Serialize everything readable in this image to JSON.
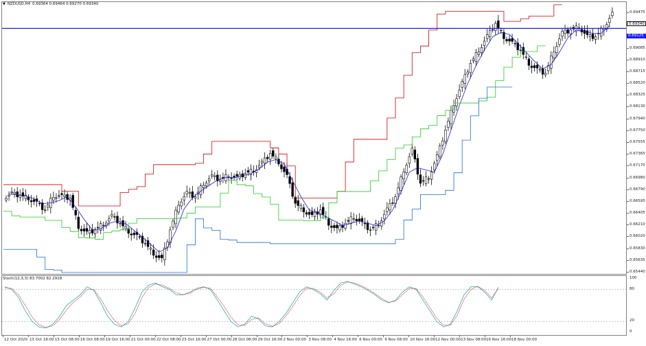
{
  "header": {
    "symbol_label": "NZDUSD,H4",
    "ohlc_values": "0.69364 0.69464 0.69270 0.69340"
  },
  "oscillator": {
    "info": "Stoch(12,3,3) 83.7002 82.2918",
    "levels": [
      "100",
      "80",
      "20",
      "0"
    ]
  },
  "price_axis": {
    "labels": [
      "0.69475",
      "0.69340",
      "0.69125",
      "0.69085",
      "0.68910",
      "0.68715",
      "0.68520",
      "0.68325",
      "0.68130",
      "0.67940",
      "0.67750",
      "0.67555",
      "0.67365",
      "0.67170",
      "0.66980",
      "0.66790",
      "0.66595",
      "0.66405",
      "0.66210",
      "0.66020",
      "0.65830",
      "0.65635",
      "0.65440"
    ],
    "current_price": "0.69340",
    "horizontal_line_price": "0.69125"
  },
  "time_axis": {
    "labels": [
      "12 Oct 2020",
      "13 Oct 16:00",
      "15 Oct 08:00",
      "16 Oct 08:00",
      "19 Oct 16:00",
      "21 Oct 00:00",
      "22 Oct 08:00",
      "23 Oct 16:00",
      "27 Oct 00:00",
      "28 Oct 08:00",
      "29 Oct 16:00",
      "2 Nov 00:00",
      "3 Nov 08:00",
      "4 Nov 16:00",
      "6 Nov 00:00",
      "9 Nov 08:00",
      "10 Nov 16:00",
      "12 Nov 00:00",
      "13 Nov 08:00",
      "16 Nov 16:00",
      "18 Nov 00:00"
    ]
  },
  "colors": {
    "bull_body": "#ffffff",
    "bear_body": "#000000",
    "red_line": "#d40000",
    "blue_ma": "#1a1ad0",
    "green_line": "#22cc22",
    "low_line": "#1a6fd8",
    "hline": "#1a1aff",
    "stoch_main": "#20b0b0",
    "stoch_signal": "#e02020"
  },
  "chart_data": {
    "type": "candlestick",
    "symbol": "NZDUSD",
    "timeframe": "H4",
    "price_range": [
      0.6544,
      0.6952
    ],
    "horizontal_line": 0.69125,
    "close_path": [
      0.6664,
      0.6662,
      0.6658,
      0.665,
      0.664,
      0.6662,
      0.666,
      0.6658,
      0.6615,
      0.6605,
      0.661,
      0.662,
      0.663,
      0.662,
      0.6608,
      0.66,
      0.659,
      0.6575,
      0.6565,
      0.661,
      0.665,
      0.6665,
      0.666,
      0.668,
      0.669,
      0.6685,
      0.6692,
      0.6688,
      0.6695,
      0.67,
      0.671,
      0.6725,
      0.6712,
      0.669,
      0.665,
      0.664,
      0.663,
      0.664,
      0.662,
      0.661,
      0.662,
      0.663,
      0.662,
      0.661,
      0.662,
      0.664,
      0.666,
      0.67,
      0.673,
      0.668,
      0.669,
      0.672,
      0.676,
      0.68,
      0.683,
      0.686,
      0.688,
      0.69,
      0.692,
      0.69,
      0.689,
      0.688,
      0.686,
      0.685,
      0.6845,
      0.688,
      0.6905,
      0.691,
      0.6915,
      0.69,
      0.69,
      0.6915,
      0.6934
    ],
    "stoch_main": [
      85,
      80,
      65,
      40,
      20,
      10,
      8,
      15,
      30,
      50,
      60,
      70,
      85,
      78,
      55,
      30,
      15,
      10,
      20,
      45,
      75,
      88,
      92,
      85,
      80,
      70,
      70,
      75,
      82,
      85,
      80,
      60,
      40,
      20,
      10,
      15,
      30,
      25,
      12,
      10,
      20,
      35,
      55,
      75,
      85,
      80,
      72,
      60,
      78,
      92,
      95,
      90,
      85,
      78,
      70,
      60,
      55,
      60,
      75,
      85,
      80,
      60,
      40,
      20,
      10,
      15,
      40,
      70,
      85,
      85,
      75,
      60,
      84
    ],
    "stoch_signal": [
      83,
      82,
      70,
      50,
      28,
      14,
      9,
      12,
      24,
      42,
      56,
      66,
      80,
      80,
      62,
      40,
      22,
      12,
      16,
      35,
      65,
      84,
      90,
      88,
      82,
      74,
      70,
      73,
      80,
      84,
      82,
      66,
      48,
      28,
      14,
      13,
      24,
      27,
      16,
      11,
      16,
      30,
      48,
      68,
      82,
      82,
      75,
      64,
      72,
      88,
      94,
      92,
      87,
      80,
      72,
      63,
      56,
      58,
      70,
      82,
      82,
      66,
      46,
      26,
      13,
      13,
      32,
      62,
      80,
      86,
      78,
      64,
      82
    ]
  }
}
